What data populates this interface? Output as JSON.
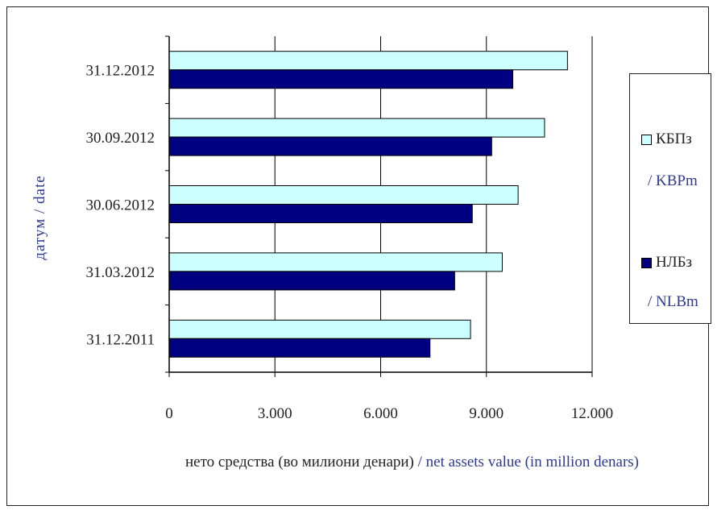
{
  "chart_data": {
    "type": "bar",
    "orientation": "horizontal",
    "categories": [
      "31.12.2012",
      "30.09.2012",
      "30.06.2012",
      "31.03.2012",
      "31.12.2011"
    ],
    "series": [
      {
        "name": "КБПз",
        "name_en": "/ KBPm",
        "color": "#ccffff",
        "values": [
          11300,
          10650,
          9900,
          9450,
          8550
        ]
      },
      {
        "name": "НЛБз",
        "name_en": "/ NLBm",
        "color": "#000080",
        "values": [
          9750,
          9150,
          8600,
          8100,
          7400
        ]
      }
    ],
    "x_ticks": [
      "0",
      "3.000",
      "6.000",
      "9.000",
      "12.000"
    ],
    "xlim": [
      0,
      12000
    ],
    "xlabel": "нето средства (во милиони денари)",
    "xlabel_en": "/ net assets value (in million denars)",
    "ylabel": "датум",
    "ylabel_en": "/ date",
    "grid": true,
    "legend": "right"
  }
}
